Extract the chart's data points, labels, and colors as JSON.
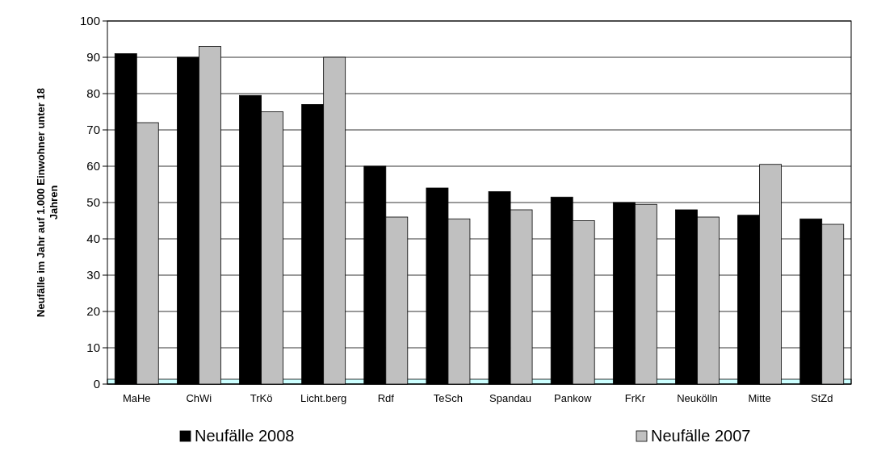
{
  "chart_data": {
    "type": "bar",
    "ylabel": "Neufälle im Jahr auf 1.000 Einwohner unter 18 Jahren",
    "categories": [
      "MaHe",
      "ChWi",
      "TrKö",
      "Licht.berg",
      "Rdf",
      "TeSch",
      "Spandau",
      "Pankow",
      "FrKr",
      "Neukölln",
      "Mitte",
      "StZd"
    ],
    "series": [
      {
        "name": "Neufälle 2008",
        "color": "#000000",
        "values": [
          91,
          90,
          79.5,
          77,
          60,
          54,
          53,
          51.5,
          50,
          48,
          46.5,
          45.5
        ]
      },
      {
        "name": "Neufälle 2007",
        "color": "#c0c0c0",
        "values": [
          72,
          93,
          75,
          90,
          46,
          45.5,
          48,
          45,
          49.5,
          46,
          60.5,
          44
        ]
      }
    ],
    "ylim": [
      0,
      100
    ],
    "yticks": [
      0,
      10,
      20,
      30,
      40,
      50,
      60,
      70,
      80,
      90,
      100
    ],
    "grid": "y",
    "legend": "bottom"
  }
}
